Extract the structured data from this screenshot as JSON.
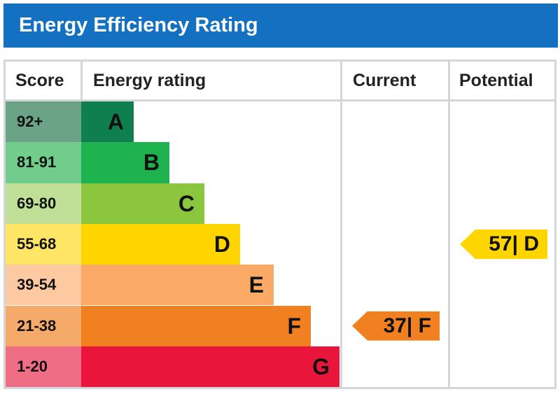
{
  "title": "Energy Efficiency Rating",
  "headers": {
    "score": "Score",
    "rating": "Energy rating",
    "current": "Current",
    "potential": "Potential"
  },
  "chart_data": {
    "type": "bar",
    "bands": [
      {
        "score": "92+",
        "letter": "A",
        "color": "#0f7f4f",
        "score_color": "#6aa385"
      },
      {
        "score": "81-91",
        "letter": "B",
        "color": "#1eb34f",
        "score_color": "#72cc8b"
      },
      {
        "score": "69-80",
        "letter": "C",
        "color": "#8cc63f",
        "score_color": "#bfe096"
      },
      {
        "score": "55-68",
        "letter": "D",
        "color": "#ffd500",
        "score_color": "#ffe566"
      },
      {
        "score": "39-54",
        "letter": "E",
        "color": "#fbaa65",
        "score_color": "#fcc9a0"
      },
      {
        "score": "21-38",
        "letter": "F",
        "color": "#f18021",
        "score_color": "#f5aa6a"
      },
      {
        "score": "1-20",
        "letter": "G",
        "color": "#e9153b",
        "score_color": "#f06d86"
      }
    ],
    "current": {
      "label": "37| F",
      "value": 37,
      "band": "F",
      "color": "#f18021"
    },
    "potential": {
      "label": "57| D",
      "value": 57,
      "band": "D",
      "color": "#ffd500"
    }
  }
}
